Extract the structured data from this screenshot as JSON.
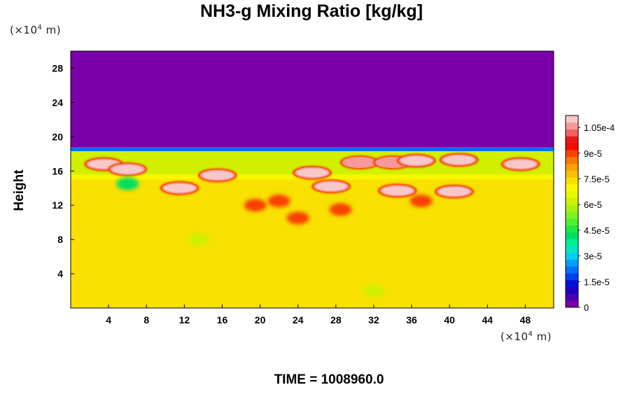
{
  "chart_data": {
    "type": "heatmap",
    "title": "NH3-g Mixing Ratio [kg/kg]",
    "ylabel": "Height",
    "xlabel": "",
    "x_unit_prefix": "(×10",
    "x_unit_exp": "4",
    "x_unit_suffix": " m)",
    "y_unit_prefix": "(×10",
    "y_unit_exp": "4",
    "y_unit_suffix": " m)",
    "xlim": [
      0,
      51
    ],
    "ylim": [
      0,
      30
    ],
    "x_ticks": [
      4,
      8,
      12,
      16,
      20,
      24,
      28,
      32,
      36,
      40,
      44,
      48
    ],
    "y_ticks": [
      4,
      8,
      12,
      16,
      20,
      24,
      28
    ],
    "x_tick_labels": [
      "4",
      "8",
      "12",
      "16",
      "20",
      "24",
      "28",
      "32",
      "36",
      "40",
      "44",
      "48"
    ],
    "y_tick_labels": [
      "4",
      "8",
      "12",
      "16",
      "20",
      "24",
      "28"
    ],
    "time_label": "TIME = 1008960.0",
    "colorbar": {
      "min": 0,
      "max": 0.000112,
      "tick_values": [
        0,
        1.5e-05,
        3e-05,
        4.5e-05,
        6e-05,
        7.5e-05,
        9e-05,
        0.000105
      ],
      "tick_labels": [
        "0",
        "1.5e-5",
        "3e-5",
        "4.5e-5",
        "6e-5",
        "7.5e-5",
        "9e-5",
        "1.05e-4"
      ],
      "colors": [
        "#7a00a8",
        "#4a00b0",
        "#2000c0",
        "#0010d8",
        "#0040f0",
        "#0070ff",
        "#00a0ff",
        "#00d0f0",
        "#00e8c0",
        "#00f090",
        "#00e060",
        "#20e840",
        "#50f030",
        "#80f020",
        "#a8f010",
        "#d0f000",
        "#e8f800",
        "#f8f800",
        "#f8e000",
        "#f8c000",
        "#f8a000",
        "#f87800",
        "#f84000",
        "#f01000",
        "#e81818",
        "#f06060",
        "#f89898",
        "#f8c8c8"
      ]
    },
    "regions": [
      {
        "type": "stratosphere",
        "y_from": 18.8,
        "y_to": 30,
        "value": 0
      },
      {
        "type": "dark-blue-band",
        "y_from": 18.3,
        "y_to": 18.8,
        "value": 2e-05
      },
      {
        "type": "lower-layer",
        "y_from": 0,
        "y_to": 15.2,
        "value": 7.5e-05
      },
      {
        "type": "green-band",
        "y_from": 15.2,
        "y_to": 18.3,
        "value": 6e-05
      }
    ],
    "blobs": [
      {
        "x": 3.5,
        "y": 16.8,
        "value": 0.000112
      },
      {
        "x": 6.0,
        "y": 16.2,
        "value": 0.000112
      },
      {
        "x": 11.5,
        "y": 14.0,
        "value": 0.000112
      },
      {
        "x": 15.5,
        "y": 15.5,
        "value": 0.000112
      },
      {
        "x": 25.5,
        "y": 15.8,
        "value": 0.000112
      },
      {
        "x": 27.5,
        "y": 14.2,
        "value": 0.000112
      },
      {
        "x": 30.5,
        "y": 17.0,
        "value": 0.000105
      },
      {
        "x": 34.0,
        "y": 17.0,
        "value": 0.000105
      },
      {
        "x": 36.5,
        "y": 17.2,
        "value": 0.000112
      },
      {
        "x": 41.0,
        "y": 17.3,
        "value": 0.000112
      },
      {
        "x": 47.5,
        "y": 16.8,
        "value": 0.000112
      },
      {
        "x": 34.5,
        "y": 13.7,
        "value": 0.000112
      },
      {
        "x": 40.5,
        "y": 13.6,
        "value": 0.000112
      },
      {
        "x": 22.0,
        "y": 12.5,
        "value": 9e-05
      },
      {
        "x": 28.5,
        "y": 11.5,
        "value": 9e-05
      },
      {
        "x": 24.0,
        "y": 10.5,
        "value": 9e-05
      },
      {
        "x": 19.5,
        "y": 12.0,
        "value": 9e-05
      },
      {
        "x": 37.0,
        "y": 12.5,
        "value": 9e-05
      },
      {
        "x": 13.5,
        "y": 8.0,
        "value": 6e-05
      },
      {
        "x": 32.0,
        "y": 2.0,
        "value": 6e-05
      },
      {
        "x": 6.0,
        "y": 14.5,
        "value": 4e-05
      }
    ]
  }
}
